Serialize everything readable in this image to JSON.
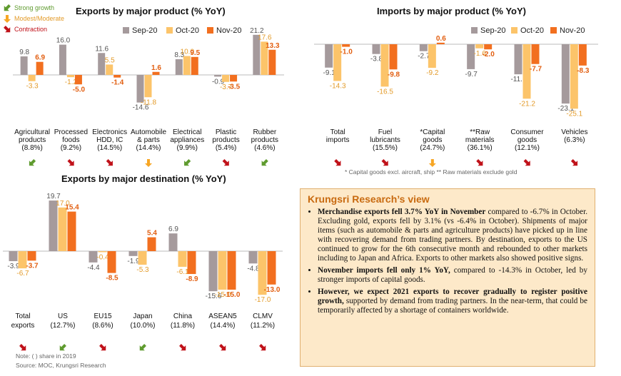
{
  "colors": {
    "sep": "#a59a9c",
    "oct": "#fcc46a",
    "nov": "#f26f1f",
    "strong": "#5f9b2f",
    "modest": "#f7a624",
    "contraction": "#c0121a"
  },
  "signal_legend": [
    "Strong growth",
    "Modest/Moderate",
    "Contraction"
  ],
  "footnotes": {
    "imports": "* Capital goods excl. aircraft, ship   ** Raw materials exclude gold",
    "note": "Note: (  ) share in 2019",
    "source": "Source: MOC, Krungsri Research"
  },
  "chart_data": [
    {
      "type": "bar",
      "title": "Exports by major product (% YoY)",
      "series_names": [
        "Sep-20",
        "Oct-20",
        "Nov-20"
      ],
      "categories": [
        {
          "label": [
            "Agricultural",
            "products",
            "(8.8%)"
          ],
          "values": [
            9.8,
            -3.3,
            6.9
          ],
          "signal": "strong"
        },
        {
          "label": [
            "Processed",
            "foods",
            "(9.2%)"
          ],
          "values": [
            16.0,
            -1.2,
            -5.0
          ],
          "signal": "contraction"
        },
        {
          "label": [
            "Electronics",
            "HDD, IC",
            "(14.5%)"
          ],
          "values": [
            11.6,
            5.5,
            -1.4
          ],
          "signal": "contraction"
        },
        {
          "label": [
            "Automobile",
            "& parts",
            "(14.4%)"
          ],
          "values": [
            -14.6,
            -11.8,
            1.6
          ],
          "signal": "modest"
        },
        {
          "label": [
            "Electrical",
            "appliances",
            "(9.9%)"
          ],
          "values": [
            8.3,
            10.0,
            9.5
          ],
          "signal": "strong"
        },
        {
          "label": [
            "Plastic",
            "products",
            "(5.4%)"
          ],
          "values": [
            -0.9,
            -3.7,
            -3.5
          ],
          "signal": "contraction"
        },
        {
          "label": [
            "Rubber",
            "products",
            "(4.6%)"
          ],
          "values": [
            21.2,
            17.6,
            13.3
          ],
          "signal": "strong"
        }
      ]
    },
    {
      "type": "bar",
      "title": "Imports by major product (% YoY)",
      "series_names": [
        "Sep-20",
        "Oct-20",
        "Nov-20"
      ],
      "categories": [
        {
          "label": [
            "Total",
            "imports"
          ],
          "values": [
            -9.1,
            -14.3,
            -1.0
          ],
          "signal": "contraction"
        },
        {
          "label": [
            "Fuel",
            "lubricants",
            "(15.5%)"
          ],
          "values": [
            -3.8,
            -16.5,
            -9.8
          ],
          "signal": "contraction"
        },
        {
          "label": [
            "*Capital",
            "goods",
            "(24.7%)"
          ],
          "values": [
            -2.7,
            -9.2,
            0.6
          ],
          "signal": "modest"
        },
        {
          "label": [
            "**Raw",
            "materials",
            "(36.1%)"
          ],
          "values": [
            -9.7,
            -1.6,
            -2.0
          ],
          "signal": "contraction"
        },
        {
          "label": [
            "Consumer",
            "goods",
            "(12.1%)"
          ],
          "values": [
            -11.7,
            -21.2,
            -7.7
          ],
          "signal": "contraction"
        },
        {
          "label": [
            "Vehicles",
            "(6.3%)"
          ],
          "values": [
            -23.1,
            -25.1,
            -8.3
          ],
          "signal": "contraction"
        }
      ]
    },
    {
      "type": "bar",
      "title": "Exports by major destination (% YoY)",
      "categories": [
        {
          "label": [
            "Total",
            "exports"
          ],
          "values": [
            -3.9,
            -6.7,
            -3.7
          ],
          "signal": "contraction"
        },
        {
          "label": [
            "US",
            "(12.7%)"
          ],
          "values": [
            19.7,
            17.0,
            15.4
          ],
          "signal": "strong"
        },
        {
          "label": [
            "EU15",
            "(8.6%)"
          ],
          "values": [
            -4.4,
            -0.4,
            -8.5
          ],
          "signal": "contraction"
        },
        {
          "label": [
            "Japan",
            "(10.0%)"
          ],
          "values": [
            -1.9,
            -5.3,
            5.4
          ],
          "signal": "strong"
        },
        {
          "label": [
            "China",
            "(11.8%)"
          ],
          "values": [
            6.9,
            -6.1,
            -8.9
          ],
          "signal": "contraction"
        },
        {
          "label": [
            "ASEAN5",
            "(14.4%)"
          ],
          "values": [
            -15.6,
            -15.0,
            -15.0
          ],
          "signal": "contraction"
        },
        {
          "label": [
            "CLMV",
            "(11.2%)"
          ],
          "values": [
            -4.8,
            -17.0,
            -13.0
          ],
          "signal": "contraction"
        }
      ]
    }
  ],
  "view": {
    "title": "Krungsri Research’s view",
    "bullets": [
      {
        "bold": "Merchandise exports fell 3.7% YoY in November",
        "text": " compared to -6.7% in October. Excluding gold, exports fell by 3.1% (vs -6.4% in October). Shipments of major items (such as automobile & parts and agriculture products) have picked up in line with recovering demand from trading partners. By destination, exports to the US continued to grow for the 6th consecutive month and rebounded to other markets including to Japan and Africa. Exports to other markets also showed positive signs."
      },
      {
        "bold": "November imports fell only 1% YoY,",
        "text": " compared to -14.3% in October, led by stronger imports of capital goods."
      },
      {
        "bold": "However, we expect 2021 exports to recover gradually to register positive growth,",
        "text": " supported by demand from trading partners. In the near-term, that could be temporarily affected by a shortage of containers worldwide."
      }
    ]
  }
}
